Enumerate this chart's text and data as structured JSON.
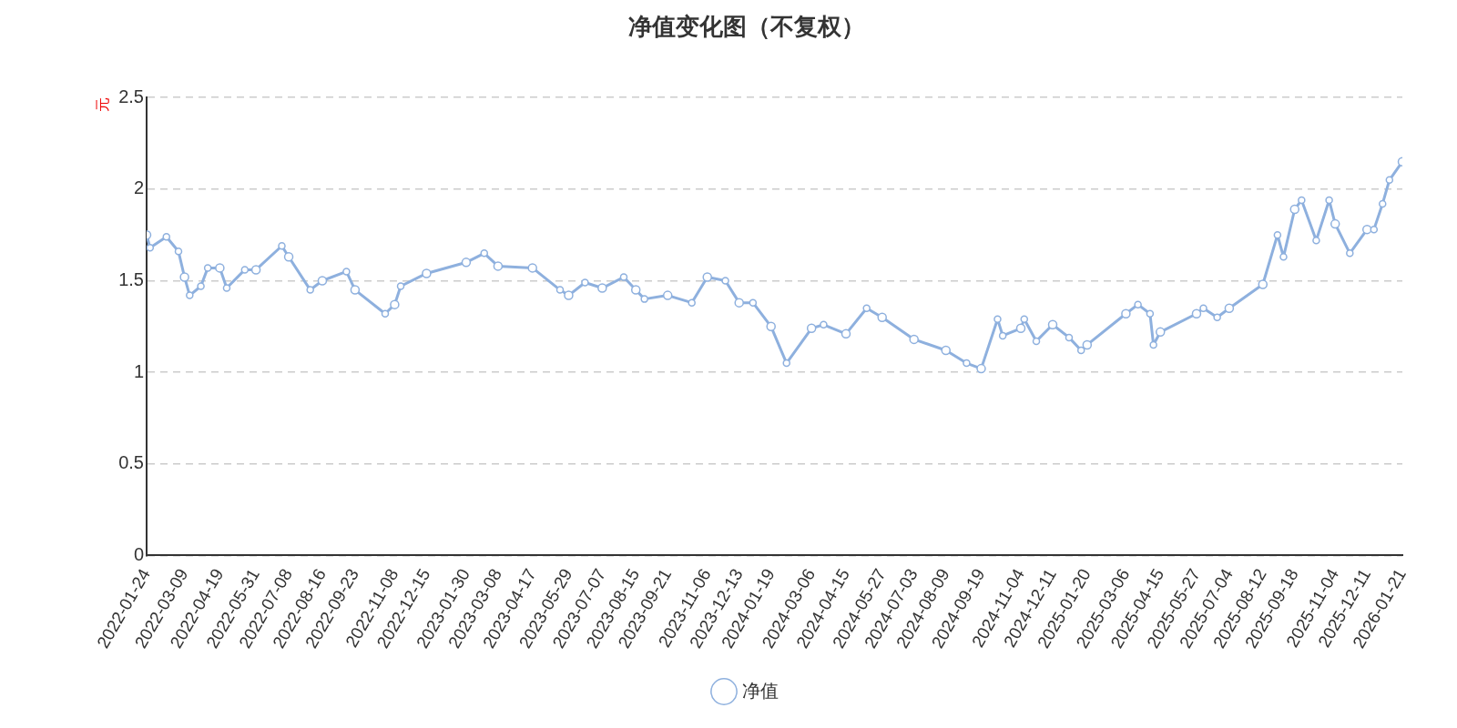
{
  "chart_data": {
    "type": "line",
    "title": "净值变化图（不复权）",
    "ylabel": "元",
    "legend": "bottom",
    "grid": "y",
    "marker": "circle",
    "line_style": "solid",
    "xlim": [
      "2022-01-24",
      "2026-01-21"
    ],
    "ylim": [
      0,
      2.5
    ],
    "yticks": [
      0,
      0.5,
      1,
      1.5,
      2,
      2.5
    ],
    "xticks": [
      "2022-01-24",
      "2022-03-09",
      "2022-04-19",
      "2022-05-31",
      "2022-07-08",
      "2022-08-16",
      "2022-09-23",
      "2022-11-08",
      "2022-12-15",
      "2023-01-30",
      "2023-03-08",
      "2023-04-17",
      "2023-05-29",
      "2023-07-07",
      "2023-08-15",
      "2023-09-21",
      "2023-11-06",
      "2023-12-13",
      "2024-01-19",
      "2024-03-06",
      "2024-04-15",
      "2024-05-27",
      "2024-07-03",
      "2024-08-09",
      "2024-09-19",
      "2024-11-04",
      "2024-12-11",
      "2025-01-20",
      "2025-03-06",
      "2025-04-15",
      "2025-05-27",
      "2025-07-04",
      "2025-08-12",
      "2025-09-18",
      "2025-11-04",
      "2025-12-11",
      "2026-01-21"
    ],
    "series": [
      {
        "name": "净值",
        "color": "#8eb0de",
        "x": [
          "2022-01-24",
          "2022-01-28",
          "2022-02-16",
          "2022-03-02",
          "2022-03-09",
          "2022-03-15",
          "2022-03-28",
          "2022-04-05",
          "2022-04-19",
          "2022-04-27",
          "2022-05-18",
          "2022-05-31",
          "2022-06-30",
          "2022-07-08",
          "2022-08-02",
          "2022-08-16",
          "2022-09-13",
          "2022-09-23",
          "2022-10-28",
          "2022-11-08",
          "2022-11-15",
          "2022-12-15",
          "2023-01-30",
          "2023-02-20",
          "2023-03-08",
          "2023-04-17",
          "2023-05-19",
          "2023-05-29",
          "2023-06-17",
          "2023-07-07",
          "2023-08-01",
          "2023-08-15",
          "2023-08-25",
          "2023-09-21",
          "2023-10-19",
          "2023-11-06",
          "2023-11-27",
          "2023-12-13",
          "2023-12-29",
          "2024-01-19",
          "2024-02-06",
          "2024-03-06",
          "2024-03-20",
          "2024-04-15",
          "2024-05-09",
          "2024-05-27",
          "2024-07-03",
          "2024-08-09",
          "2024-09-02",
          "2024-09-19",
          "2024-10-08",
          "2024-10-14",
          "2024-11-04",
          "2024-11-08",
          "2024-11-22",
          "2024-12-11",
          "2024-12-30",
          "2025-01-13",
          "2025-01-20",
          "2025-03-06",
          "2025-03-20",
          "2025-04-03",
          "2025-04-07",
          "2025-04-15",
          "2025-05-27",
          "2025-06-04",
          "2025-06-20",
          "2025-07-04",
          "2025-08-12",
          "2025-08-29",
          "2025-09-05",
          "2025-09-18",
          "2025-09-26",
          "2025-10-13",
          "2025-10-28",
          "2025-11-04",
          "2025-11-21",
          "2025-12-11",
          "2025-12-19",
          "2025-12-29",
          "2026-01-06",
          "2026-01-21"
        ],
        "values": [
          1.75,
          1.68,
          1.74,
          1.66,
          1.52,
          1.42,
          1.47,
          1.57,
          1.57,
          1.46,
          1.56,
          1.56,
          1.69,
          1.63,
          1.45,
          1.5,
          1.55,
          1.45,
          1.32,
          1.37,
          1.47,
          1.54,
          1.6,
          1.65,
          1.58,
          1.57,
          1.45,
          1.42,
          1.49,
          1.46,
          1.52,
          1.45,
          1.4,
          1.42,
          1.38,
          1.52,
          1.5,
          1.38,
          1.38,
          1.25,
          1.05,
          1.24,
          1.26,
          1.21,
          1.35,
          1.3,
          1.18,
          1.12,
          1.05,
          1.02,
          1.29,
          1.2,
          1.24,
          1.29,
          1.17,
          1.26,
          1.19,
          1.12,
          1.15,
          1.32,
          1.37,
          1.32,
          1.15,
          1.22,
          1.32,
          1.35,
          1.3,
          1.35,
          1.48,
          1.75,
          1.63,
          1.89,
          1.94,
          1.72,
          1.94,
          1.81,
          1.65,
          1.78,
          1.78,
          1.92,
          2.05,
          2.15
        ]
      }
    ]
  }
}
